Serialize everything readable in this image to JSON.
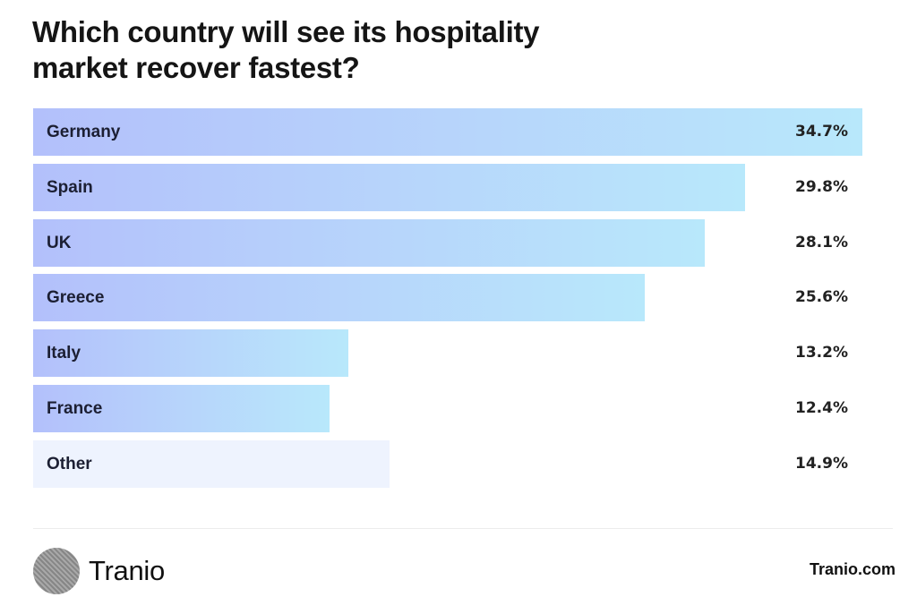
{
  "header": {
    "title_line1": "Which country will see its hospitality",
    "title_line2": "market recover fastest?"
  },
  "chart_data": {
    "type": "bar",
    "orientation": "horizontal",
    "title": "Which country will see its hospitality market recover fastest?",
    "categories": [
      "Germany",
      "Spain",
      "UK",
      "Greece",
      "Italy",
      "France",
      "Other"
    ],
    "values": [
      34.7,
      29.8,
      28.1,
      25.6,
      13.2,
      12.4,
      14.9
    ],
    "value_labels": [
      "34.7%",
      "29.8%",
      "28.1%",
      "25.6%",
      "13.2%",
      "12.4%",
      "14.9%"
    ],
    "unit": "%",
    "xlabel": "",
    "ylabel": "",
    "grid": false,
    "legend": null,
    "colors": {
      "gradient_start": "#b3c0fb",
      "gradient_end": "#b8e8fb",
      "other": "#eef3fe"
    }
  },
  "footer": {
    "brand": "Tranio",
    "logo_icon": "tranio-logo-icon",
    "site": "Tranio.com"
  }
}
